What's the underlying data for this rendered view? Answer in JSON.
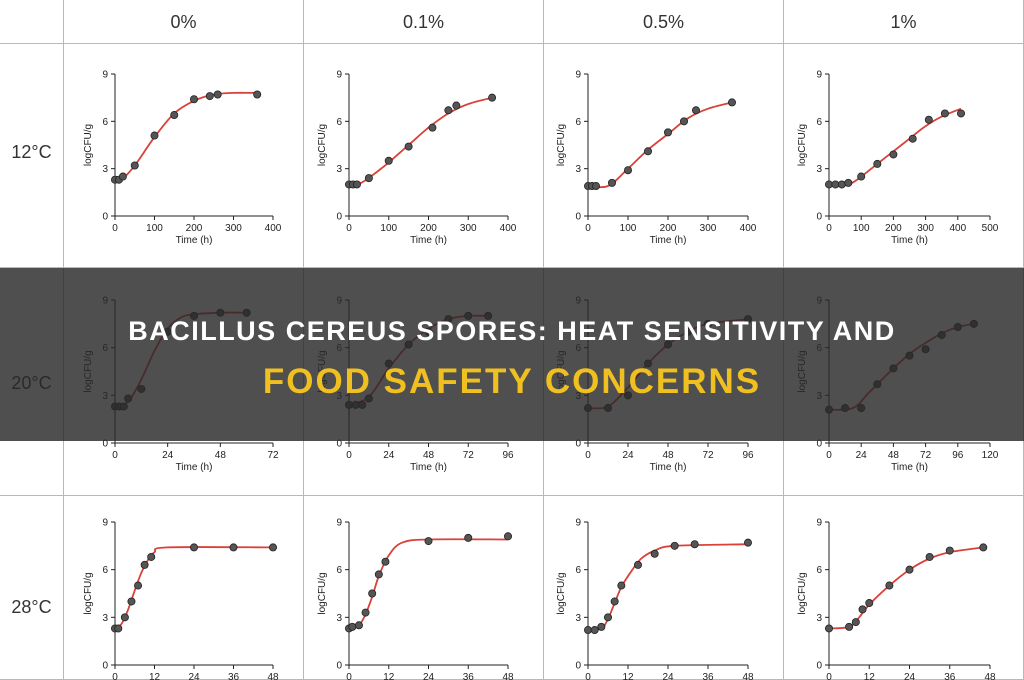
{
  "banner": {
    "line1": "BACILLUS CEREUS SPORES: HEAT SENSITIVITY AND",
    "line2": "FOOD SAFETY CONCERNS"
  },
  "colors": {
    "curve": "#d9413a",
    "point": "#555555",
    "banner_title": "#ffffff",
    "banner_subtitle": "#f0c020"
  },
  "columns": [
    "0%",
    "0.1%",
    "0.5%",
    "1%"
  ],
  "rows": [
    "12°C",
    "20°C",
    "28°C"
  ],
  "chart_data": [
    {
      "type": "line",
      "row": "12°C",
      "column": "0%",
      "xlabel": "Time (h)",
      "ylabel": "logCFU/g",
      "xlim": [
        0,
        400
      ],
      "ylim": [
        0,
        9
      ],
      "xticks": [
        0,
        100,
        200,
        300,
        400
      ],
      "yticks": [
        0,
        3,
        6,
        9
      ],
      "points": [
        [
          0,
          2.3
        ],
        [
          10,
          2.3
        ],
        [
          20,
          2.5
        ],
        [
          50,
          3.2
        ],
        [
          100,
          5.1
        ],
        [
          150,
          6.4
        ],
        [
          200,
          7.4
        ],
        [
          240,
          7.6
        ],
        [
          260,
          7.7
        ],
        [
          360,
          7.7
        ]
      ],
      "fit": [
        [
          0,
          2.3
        ],
        [
          20,
          2.4
        ],
        [
          50,
          3.2
        ],
        [
          100,
          5.0
        ],
        [
          150,
          6.5
        ],
        [
          200,
          7.3
        ],
        [
          250,
          7.7
        ],
        [
          300,
          7.8
        ],
        [
          360,
          7.8
        ]
      ]
    },
    {
      "type": "line",
      "row": "12°C",
      "column": "0.1%",
      "xlabel": "Time (h)",
      "ylabel": "logCFU/g",
      "xlim": [
        0,
        400
      ],
      "ylim": [
        0,
        9
      ],
      "xticks": [
        0,
        100,
        200,
        300,
        400
      ],
      "yticks": [
        0,
        3,
        6,
        9
      ],
      "points": [
        [
          0,
          2.0
        ],
        [
          10,
          2.0
        ],
        [
          20,
          2.0
        ],
        [
          50,
          2.4
        ],
        [
          100,
          3.5
        ],
        [
          150,
          4.4
        ],
        [
          210,
          5.6
        ],
        [
          250,
          6.7
        ],
        [
          270,
          7.0
        ],
        [
          360,
          7.5
        ]
      ],
      "fit": [
        [
          0,
          2.0
        ],
        [
          30,
          2.1
        ],
        [
          60,
          2.6
        ],
        [
          100,
          3.4
        ],
        [
          150,
          4.5
        ],
        [
          200,
          5.6
        ],
        [
          250,
          6.5
        ],
        [
          300,
          7.1
        ],
        [
          360,
          7.5
        ]
      ]
    },
    {
      "type": "line",
      "row": "12°C",
      "column": "0.5%",
      "xlabel": "Time (h)",
      "ylabel": "logCFU/g",
      "xlim": [
        0,
        400
      ],
      "ylim": [
        0,
        9
      ],
      "xticks": [
        0,
        100,
        200,
        300,
        400
      ],
      "yticks": [
        0,
        3,
        6,
        9
      ],
      "points": [
        [
          0,
          1.9
        ],
        [
          10,
          1.9
        ],
        [
          20,
          1.9
        ],
        [
          60,
          2.1
        ],
        [
          100,
          2.9
        ],
        [
          150,
          4.1
        ],
        [
          200,
          5.3
        ],
        [
          240,
          6.0
        ],
        [
          270,
          6.7
        ],
        [
          360,
          7.2
        ]
      ],
      "fit": [
        [
          0,
          1.9
        ],
        [
          50,
          1.9
        ],
        [
          100,
          3.0
        ],
        [
          150,
          4.2
        ],
        [
          200,
          5.2
        ],
        [
          250,
          6.2
        ],
        [
          300,
          6.8
        ],
        [
          360,
          7.2
        ]
      ]
    },
    {
      "type": "line",
      "row": "12°C",
      "column": "1%",
      "xlabel": "Time (h)",
      "ylabel": "logCFU/g",
      "xlim": [
        0,
        500
      ],
      "ylim": [
        0,
        9
      ],
      "xticks": [
        0,
        100,
        200,
        300,
        400,
        500
      ],
      "yticks": [
        0,
        3,
        6,
        9
      ],
      "points": [
        [
          0,
          2.0
        ],
        [
          20,
          2.0
        ],
        [
          40,
          2.0
        ],
        [
          60,
          2.1
        ],
        [
          100,
          2.5
        ],
        [
          150,
          3.3
        ],
        [
          200,
          3.9
        ],
        [
          260,
          4.9
        ],
        [
          310,
          6.1
        ],
        [
          360,
          6.5
        ],
        [
          410,
          6.5
        ]
      ],
      "fit": [
        [
          0,
          2.0
        ],
        [
          60,
          2.0
        ],
        [
          100,
          2.5
        ],
        [
          150,
          3.3
        ],
        [
          200,
          4.1
        ],
        [
          250,
          4.9
        ],
        [
          300,
          5.7
        ],
        [
          350,
          6.3
        ],
        [
          410,
          6.8
        ]
      ]
    },
    {
      "type": "line",
      "row": "20°C",
      "column": "0%",
      "xlabel": "Time (h)",
      "ylabel": "logCFU/g",
      "xlim": [
        0,
        72
      ],
      "ylim": [
        0,
        9
      ],
      "xticks": [
        0,
        24,
        48,
        72
      ],
      "yticks": [
        0,
        3,
        6,
        9
      ],
      "points": [
        [
          0,
          2.3
        ],
        [
          2,
          2.3
        ],
        [
          4,
          2.3
        ],
        [
          6,
          2.8
        ],
        [
          12,
          3.4
        ],
        [
          24,
          7.0
        ],
        [
          36,
          8.0
        ],
        [
          48,
          8.2
        ],
        [
          60,
          8.2
        ]
      ],
      "fit": [
        [
          0,
          2.3
        ],
        [
          6,
          2.6
        ],
        [
          12,
          4.0
        ],
        [
          18,
          5.8
        ],
        [
          24,
          7.2
        ],
        [
          30,
          7.9
        ],
        [
          36,
          8.1
        ],
        [
          48,
          8.2
        ],
        [
          60,
          8.2
        ]
      ]
    },
    {
      "type": "line",
      "row": "20°C",
      "column": "0.1%",
      "xlabel": "Time (h)",
      "ylabel": "logCFU/g",
      "xlim": [
        0,
        96
      ],
      "ylim": [
        0,
        9
      ],
      "xticks": [
        0,
        24,
        48,
        72,
        96
      ],
      "yticks": [
        0,
        3,
        6,
        9
      ],
      "points": [
        [
          0,
          2.4
        ],
        [
          4,
          2.4
        ],
        [
          8,
          2.4
        ],
        [
          12,
          2.8
        ],
        [
          24,
          5.0
        ],
        [
          36,
          6.2
        ],
        [
          48,
          7.0
        ],
        [
          60,
          7.8
        ],
        [
          72,
          8.0
        ],
        [
          84,
          8.0
        ]
      ],
      "fit": [
        [
          0,
          2.4
        ],
        [
          12,
          2.9
        ],
        [
          24,
          4.7
        ],
        [
          36,
          6.2
        ],
        [
          48,
          7.2
        ],
        [
          60,
          7.8
        ],
        [
          72,
          8.0
        ],
        [
          84,
          8.0
        ]
      ]
    },
    {
      "type": "line",
      "row": "20°C",
      "column": "0.5%",
      "xlabel": "Time (h)",
      "ylabel": "logCFU/g",
      "xlim": [
        0,
        96
      ],
      "ylim": [
        0,
        9
      ],
      "xticks": [
        0,
        24,
        48,
        72,
        96
      ],
      "yticks": [
        0,
        3,
        6,
        9
      ],
      "points": [
        [
          0,
          2.2
        ],
        [
          12,
          2.2
        ],
        [
          24,
          3.0
        ],
        [
          36,
          5.0
        ],
        [
          48,
          6.2
        ],
        [
          60,
          7.0
        ],
        [
          72,
          7.5
        ],
        [
          96,
          7.8
        ]
      ],
      "fit": [
        [
          0,
          2.2
        ],
        [
          12,
          2.3
        ],
        [
          24,
          3.5
        ],
        [
          36,
          5.0
        ],
        [
          48,
          6.2
        ],
        [
          60,
          7.0
        ],
        [
          72,
          7.5
        ],
        [
          96,
          7.8
        ]
      ]
    },
    {
      "type": "line",
      "row": "20°C",
      "column": "1%",
      "xlabel": "Time (h)",
      "ylabel": "logCFU/g",
      "xlim": [
        0,
        120
      ],
      "ylim": [
        0,
        9
      ],
      "xticks": [
        0,
        24,
        48,
        72,
        96,
        120
      ],
      "yticks": [
        0,
        3,
        6,
        9
      ],
      "points": [
        [
          0,
          2.1
        ],
        [
          12,
          2.2
        ],
        [
          24,
          2.2
        ],
        [
          36,
          3.7
        ],
        [
          48,
          4.7
        ],
        [
          60,
          5.5
        ],
        [
          72,
          5.9
        ],
        [
          84,
          6.8
        ],
        [
          96,
          7.3
        ],
        [
          108,
          7.5
        ]
      ],
      "fit": [
        [
          0,
          2.1
        ],
        [
          18,
          2.2
        ],
        [
          30,
          3.2
        ],
        [
          48,
          4.7
        ],
        [
          60,
          5.6
        ],
        [
          72,
          6.3
        ],
        [
          84,
          6.9
        ],
        [
          96,
          7.3
        ],
        [
          108,
          7.5
        ]
      ]
    },
    {
      "type": "line",
      "row": "28°C",
      "column": "0%",
      "xlabel": "",
      "ylabel": "logCFU/g",
      "xlim": [
        0,
        48
      ],
      "ylim": [
        0,
        9
      ],
      "xticks": [
        0,
        12,
        24,
        36,
        48
      ],
      "yticks": [
        0,
        3,
        6,
        9
      ],
      "points": [
        [
          0,
          2.3
        ],
        [
          1,
          2.3
        ],
        [
          3,
          3.0
        ],
        [
          5,
          4.0
        ],
        [
          7,
          5.0
        ],
        [
          9,
          6.3
        ],
        [
          11,
          6.8
        ],
        [
          24,
          7.4
        ],
        [
          36,
          7.4
        ],
        [
          48,
          7.4
        ]
      ],
      "fit": [
        [
          0,
          2.3
        ],
        [
          2,
          2.6
        ],
        [
          4,
          3.5
        ],
        [
          6,
          4.7
        ],
        [
          8,
          5.8
        ],
        [
          10,
          6.6
        ],
        [
          12,
          7.1
        ],
        [
          16,
          7.4
        ],
        [
          48,
          7.4
        ]
      ]
    },
    {
      "type": "line",
      "row": "28°C",
      "column": "0.1%",
      "xlabel": "",
      "ylabel": "logCFU/g",
      "xlim": [
        0,
        48
      ],
      "ylim": [
        0,
        9
      ],
      "xticks": [
        0,
        12,
        24,
        36,
        48
      ],
      "yticks": [
        0,
        3,
        6,
        9
      ],
      "points": [
        [
          0,
          2.3
        ],
        [
          1,
          2.4
        ],
        [
          3,
          2.5
        ],
        [
          5,
          3.3
        ],
        [
          7,
          4.5
        ],
        [
          9,
          5.7
        ],
        [
          11,
          6.5
        ],
        [
          24,
          7.8
        ],
        [
          36,
          8.0
        ],
        [
          48,
          8.1
        ]
      ],
      "fit": [
        [
          0,
          2.3
        ],
        [
          3,
          2.5
        ],
        [
          5,
          3.2
        ],
        [
          7,
          4.3
        ],
        [
          9,
          5.6
        ],
        [
          12,
          6.9
        ],
        [
          16,
          7.7
        ],
        [
          24,
          7.9
        ],
        [
          48,
          7.9
        ]
      ]
    },
    {
      "type": "line",
      "row": "28°C",
      "column": "0.5%",
      "xlabel": "",
      "ylabel": "logCFU/g",
      "xlim": [
        0,
        48
      ],
      "ylim": [
        0,
        9
      ],
      "xticks": [
        0,
        12,
        24,
        36,
        48
      ],
      "yticks": [
        0,
        3,
        6,
        9
      ],
      "points": [
        [
          0,
          2.2
        ],
        [
          2,
          2.2
        ],
        [
          4,
          2.4
        ],
        [
          6,
          3.0
        ],
        [
          8,
          4.0
        ],
        [
          10,
          5.0
        ],
        [
          15,
          6.3
        ],
        [
          20,
          7.0
        ],
        [
          26,
          7.5
        ],
        [
          32,
          7.6
        ],
        [
          48,
          7.7
        ]
      ],
      "fit": [
        [
          0,
          2.2
        ],
        [
          4,
          2.3
        ],
        [
          6,
          2.9
        ],
        [
          8,
          3.9
        ],
        [
          10,
          4.9
        ],
        [
          13,
          5.9
        ],
        [
          16,
          6.7
        ],
        [
          20,
          7.2
        ],
        [
          26,
          7.5
        ],
        [
          48,
          7.6
        ]
      ]
    },
    {
      "type": "line",
      "row": "28°C",
      "column": "1%",
      "xlabel": "",
      "ylabel": "logCFU/g",
      "xlim": [
        0,
        48
      ],
      "ylim": [
        0,
        9
      ],
      "xticks": [
        0,
        12,
        24,
        36,
        48
      ],
      "yticks": [
        0,
        3,
        6,
        9
      ],
      "points": [
        [
          0,
          2.3
        ],
        [
          6,
          2.4
        ],
        [
          8,
          2.7
        ],
        [
          10,
          3.5
        ],
        [
          12,
          3.9
        ],
        [
          18,
          5.0
        ],
        [
          24,
          6.0
        ],
        [
          30,
          6.8
        ],
        [
          36,
          7.2
        ],
        [
          46,
          7.4
        ]
      ],
      "fit": [
        [
          0,
          2.3
        ],
        [
          6,
          2.4
        ],
        [
          9,
          3.0
        ],
        [
          12,
          3.8
        ],
        [
          18,
          5.0
        ],
        [
          24,
          6.0
        ],
        [
          30,
          6.7
        ],
        [
          36,
          7.1
        ],
        [
          46,
          7.4
        ]
      ]
    }
  ]
}
